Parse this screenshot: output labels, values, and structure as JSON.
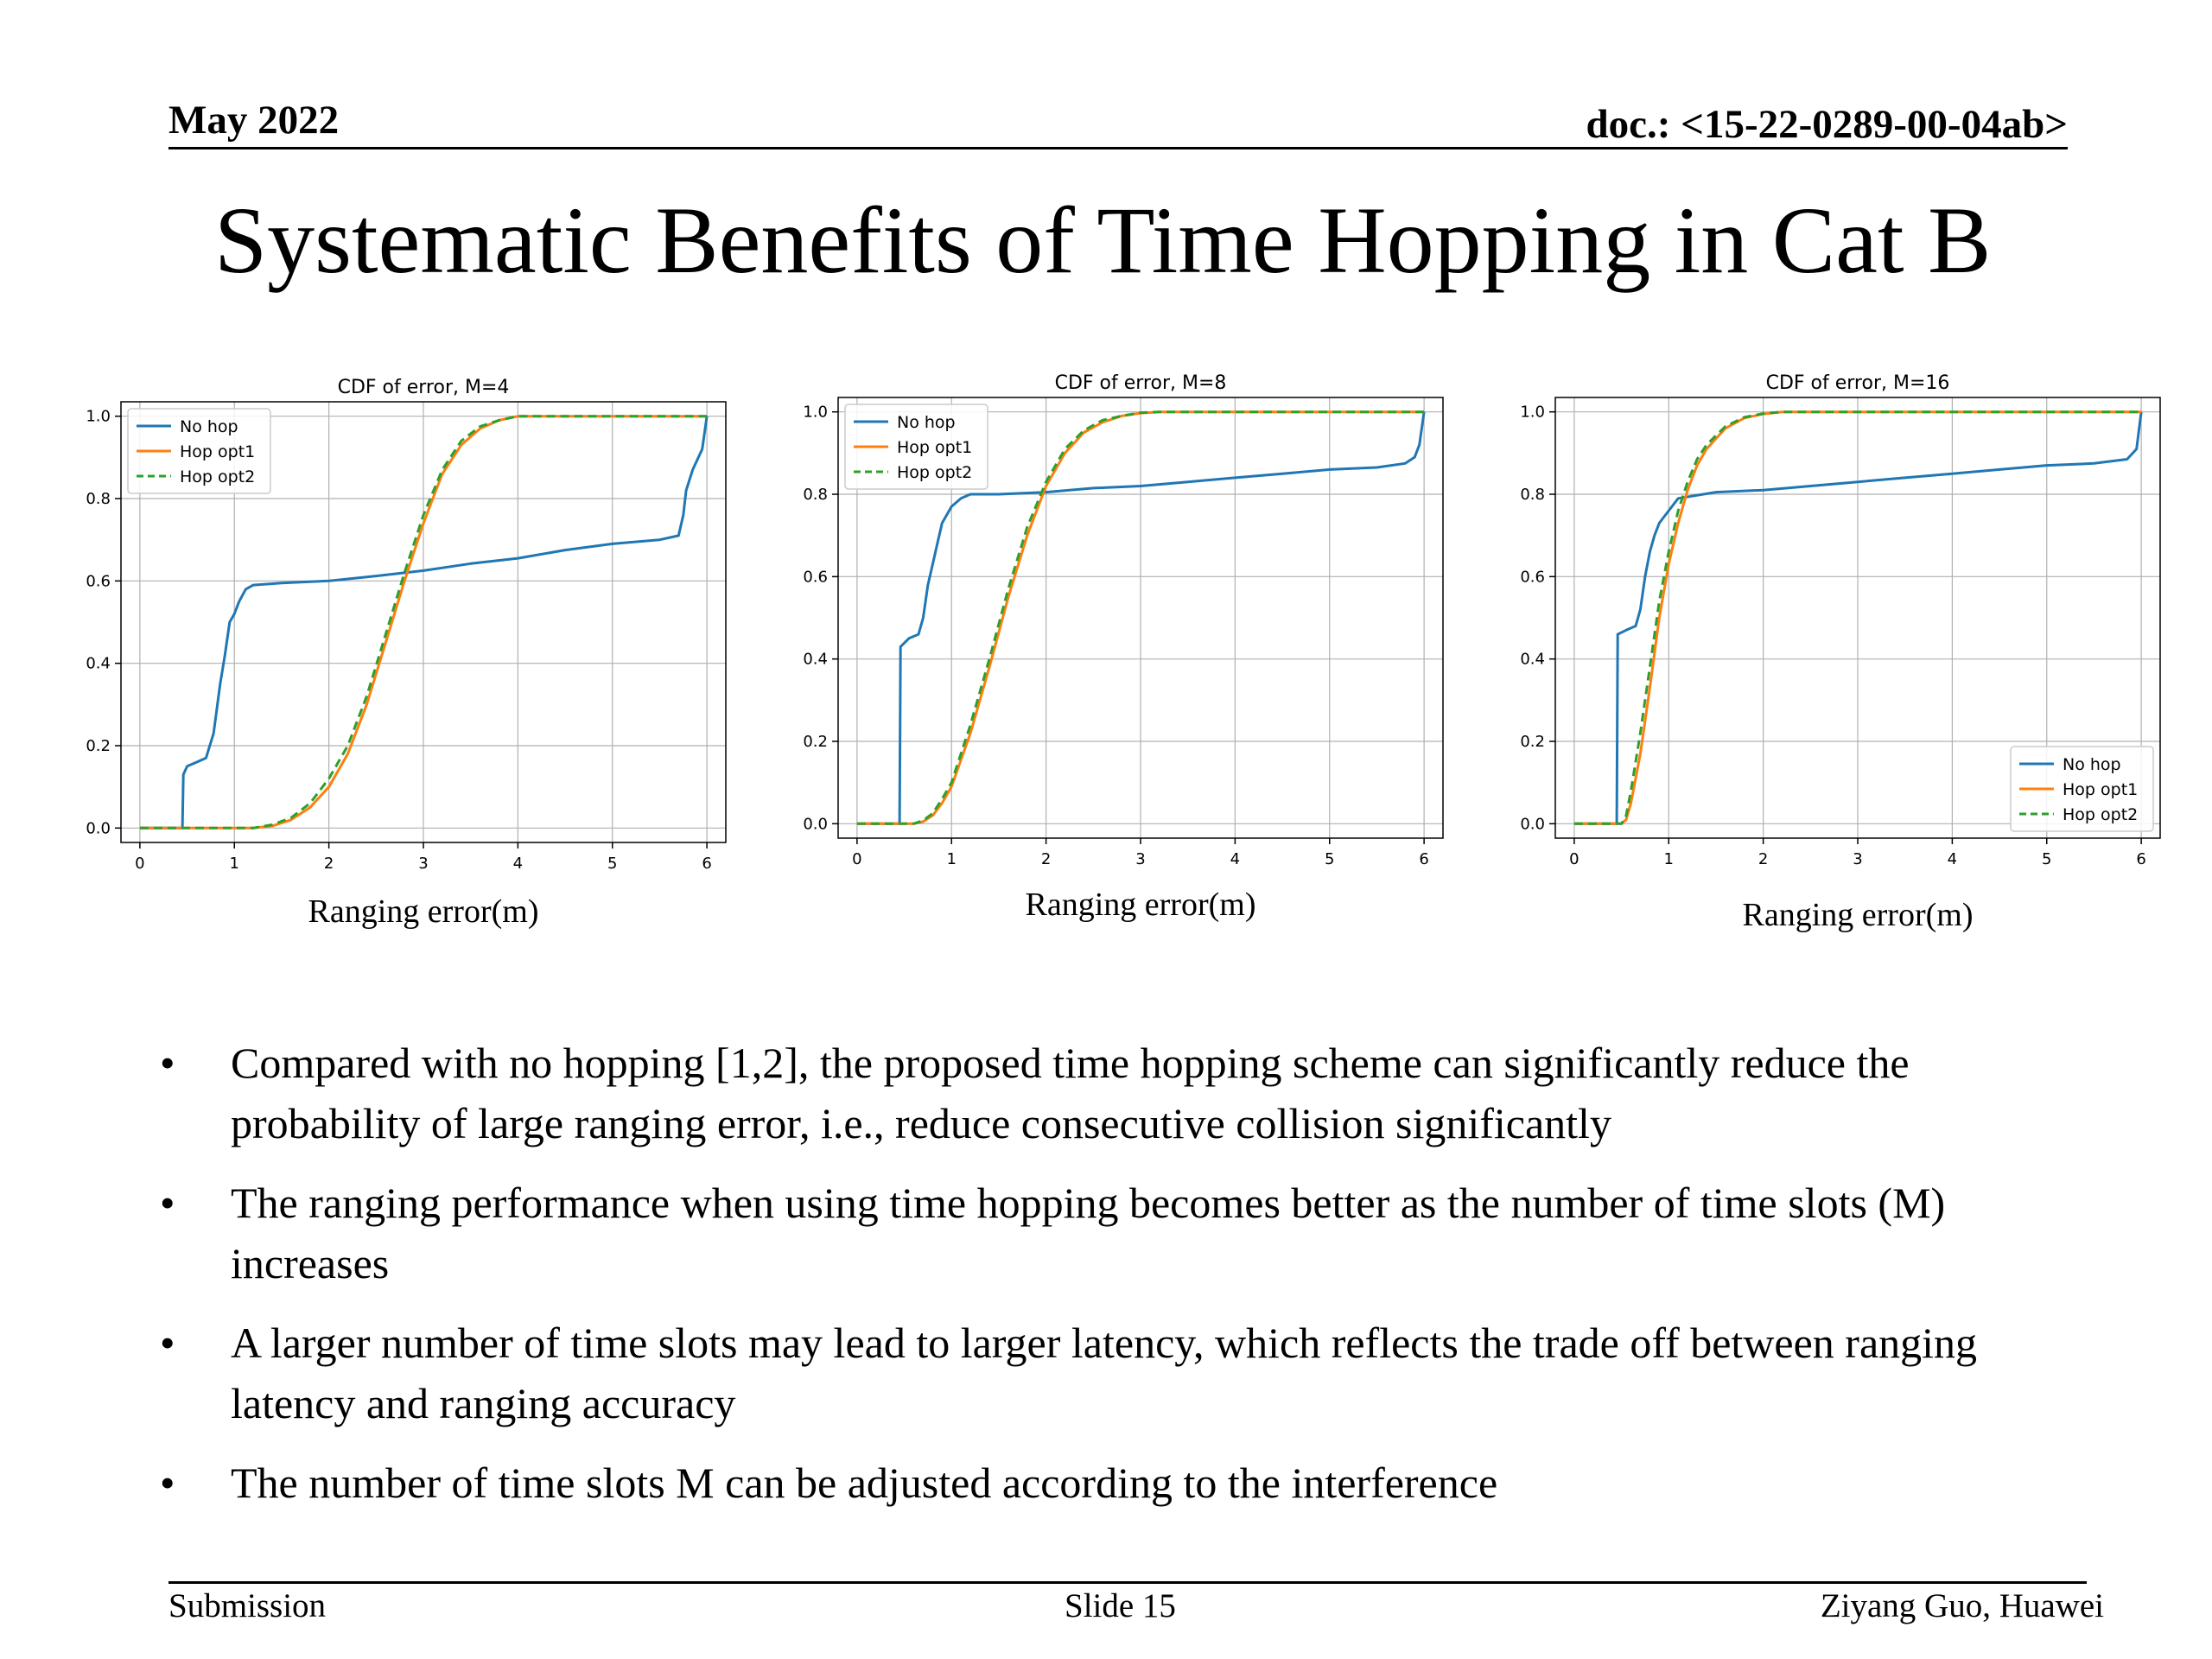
{
  "header": {
    "date": "May 2022",
    "doc": "doc.: <15-22-0289-00-04ab>"
  },
  "title": "Systematic Benefits of Time Hopping in Cat B",
  "colors": {
    "no_hop": "#1f77b4",
    "hop_opt1": "#ff7f0e",
    "hop_opt2": "#2ca02c"
  },
  "chart_data": [
    {
      "type": "line",
      "title": "CDF of error, M=4",
      "xlabel": "Ranging error(m)",
      "ylabel": "",
      "xlim": [
        0,
        6
      ],
      "ylim": [
        0,
        1
      ],
      "xticks": [
        "0",
        "1",
        "2",
        "3",
        "4",
        "5",
        "6"
      ],
      "yticks": [
        "0.0",
        "0.2",
        "0.4",
        "0.6",
        "0.8",
        "1.0"
      ],
      "grid": true,
      "legend_position": "top-left",
      "series": [
        {
          "name": "No hop",
          "style": "solid",
          "x": [
            0,
            0.45,
            0.46,
            0.5,
            0.6,
            0.7,
            0.78,
            0.85,
            0.9,
            0.95,
            1.0,
            1.05,
            1.12,
            1.2,
            1.5,
            2.0,
            2.5,
            3.0,
            3.5,
            4.0,
            4.5,
            5.0,
            5.5,
            5.7,
            5.75,
            5.78,
            5.85,
            5.95,
            6.0
          ],
          "y": [
            0.0,
            0.0,
            0.13,
            0.15,
            0.16,
            0.17,
            0.23,
            0.35,
            0.42,
            0.5,
            0.52,
            0.55,
            0.58,
            0.59,
            0.595,
            0.6,
            0.612,
            0.625,
            0.642,
            0.655,
            0.675,
            0.69,
            0.7,
            0.71,
            0.76,
            0.82,
            0.87,
            0.92,
            1.0
          ]
        },
        {
          "name": "Hop opt1",
          "style": "solid",
          "x": [
            0,
            1.0,
            1.2,
            1.4,
            1.6,
            1.8,
            2.0,
            2.2,
            2.4,
            2.6,
            2.8,
            3.0,
            3.2,
            3.4,
            3.6,
            3.8,
            4.0,
            4.3,
            6.0
          ],
          "y": [
            0.0,
            0.0,
            0.0,
            0.005,
            0.02,
            0.05,
            0.1,
            0.18,
            0.3,
            0.45,
            0.6,
            0.74,
            0.86,
            0.93,
            0.97,
            0.99,
            1.0,
            1.0,
            1.0
          ]
        },
        {
          "name": "Hop opt2",
          "style": "dashed",
          "x": [
            0,
            1.0,
            1.2,
            1.4,
            1.6,
            1.8,
            2.0,
            2.2,
            2.4,
            2.6,
            2.8,
            3.0,
            3.2,
            3.4,
            3.6,
            3.8,
            4.0,
            4.3,
            6.0
          ],
          "y": [
            0.0,
            0.0,
            0.0,
            0.008,
            0.025,
            0.06,
            0.12,
            0.2,
            0.32,
            0.47,
            0.62,
            0.76,
            0.87,
            0.94,
            0.975,
            0.99,
            1.0,
            1.0,
            1.0
          ]
        }
      ]
    },
    {
      "type": "line",
      "title": "CDF of error, M=8",
      "xlabel": "Ranging error(m)",
      "ylabel": "",
      "xlim": [
        0,
        6
      ],
      "ylim": [
        0,
        1
      ],
      "xticks": [
        "0",
        "1",
        "2",
        "3",
        "4",
        "5",
        "6"
      ],
      "yticks": [
        "0.0",
        "0.2",
        "0.4",
        "0.6",
        "0.8",
        "1.0"
      ],
      "grid": true,
      "legend_position": "top-left",
      "series": [
        {
          "name": "No hop",
          "style": "solid",
          "x": [
            0,
            0.45,
            0.46,
            0.55,
            0.65,
            0.7,
            0.75,
            0.8,
            0.85,
            0.9,
            0.95,
            1.0,
            1.1,
            1.2,
            1.5,
            2.0,
            2.5,
            3.0,
            3.5,
            4.0,
            4.5,
            5.0,
            5.5,
            5.8,
            5.9,
            5.95,
            6.0
          ],
          "y": [
            0.0,
            0.0,
            0.43,
            0.45,
            0.46,
            0.5,
            0.58,
            0.63,
            0.68,
            0.73,
            0.75,
            0.77,
            0.79,
            0.8,
            0.8,
            0.805,
            0.815,
            0.82,
            0.83,
            0.84,
            0.85,
            0.86,
            0.865,
            0.875,
            0.89,
            0.92,
            1.0
          ]
        },
        {
          "name": "Hop opt1",
          "style": "solid",
          "x": [
            0,
            0.6,
            0.7,
            0.8,
            0.9,
            1.0,
            1.2,
            1.4,
            1.6,
            1.8,
            2.0,
            2.2,
            2.4,
            2.6,
            2.8,
            3.0,
            3.2,
            3.5,
            6.0
          ],
          "y": [
            0.0,
            0.0,
            0.005,
            0.02,
            0.05,
            0.09,
            0.22,
            0.38,
            0.55,
            0.7,
            0.82,
            0.9,
            0.95,
            0.975,
            0.99,
            0.997,
            1.0,
            1.0,
            1.0
          ]
        },
        {
          "name": "Hop opt2",
          "style": "dashed",
          "x": [
            0,
            0.6,
            0.7,
            0.8,
            0.9,
            1.0,
            1.2,
            1.4,
            1.6,
            1.8,
            2.0,
            2.2,
            2.4,
            2.6,
            2.8,
            3.0,
            3.2,
            3.5,
            6.0
          ],
          "y": [
            0.0,
            0.0,
            0.008,
            0.025,
            0.06,
            0.1,
            0.24,
            0.4,
            0.57,
            0.72,
            0.83,
            0.91,
            0.955,
            0.98,
            0.99,
            0.998,
            1.0,
            1.0,
            1.0
          ]
        }
      ]
    },
    {
      "type": "line",
      "title": "CDF of error, M=16",
      "xlabel": "Ranging error(m)",
      "ylabel": "",
      "xlim": [
        0,
        6
      ],
      "ylim": [
        0,
        1
      ],
      "xticks": [
        "0",
        "1",
        "2",
        "3",
        "4",
        "5",
        "6"
      ],
      "yticks": [
        "0.0",
        "0.2",
        "0.4",
        "0.6",
        "0.8",
        "1.0"
      ],
      "grid": true,
      "legend_position": "bottom-right",
      "series": [
        {
          "name": "No hop",
          "style": "solid",
          "x": [
            0,
            0.45,
            0.46,
            0.55,
            0.65,
            0.7,
            0.75,
            0.8,
            0.85,
            0.9,
            1.0,
            1.1,
            1.5,
            2.0,
            2.5,
            3.0,
            3.5,
            4.0,
            4.5,
            5.0,
            5.5,
            5.85,
            5.95,
            6.0
          ],
          "y": [
            0.0,
            0.0,
            0.46,
            0.47,
            0.48,
            0.52,
            0.6,
            0.66,
            0.7,
            0.73,
            0.76,
            0.79,
            0.805,
            0.81,
            0.82,
            0.83,
            0.84,
            0.85,
            0.86,
            0.87,
            0.875,
            0.885,
            0.91,
            1.0
          ]
        },
        {
          "name": "Hop opt1",
          "style": "solid",
          "x": [
            0,
            0.5,
            0.55,
            0.6,
            0.7,
            0.8,
            0.9,
            1.0,
            1.1,
            1.2,
            1.3,
            1.4,
            1.6,
            1.8,
            2.0,
            2.2,
            2.5,
            6.0
          ],
          "y": [
            0.0,
            0.0,
            0.01,
            0.05,
            0.17,
            0.33,
            0.5,
            0.63,
            0.73,
            0.81,
            0.87,
            0.91,
            0.96,
            0.985,
            0.995,
            1.0,
            1.0,
            1.0
          ]
        },
        {
          "name": "Hop opt2",
          "style": "dashed",
          "x": [
            0,
            0.5,
            0.55,
            0.6,
            0.7,
            0.8,
            0.9,
            1.0,
            1.1,
            1.2,
            1.3,
            1.4,
            1.6,
            1.8,
            2.0,
            2.2,
            2.5,
            6.0
          ],
          "y": [
            0.0,
            0.0,
            0.02,
            0.08,
            0.22,
            0.38,
            0.54,
            0.66,
            0.76,
            0.83,
            0.885,
            0.92,
            0.965,
            0.987,
            0.996,
            1.0,
            1.0,
            1.0
          ]
        }
      ]
    }
  ],
  "bullets": [
    "Compared with no hopping [1,2], the proposed time hopping scheme can significantly reduce the probability of large ranging error, i.e., reduce consecutive collision significantly",
    "The ranging performance when using time hopping becomes better as the number of time slots (M) increases",
    "A larger number of time slots may lead to larger latency, which reflects the trade off between ranging latency and ranging accuracy",
    "The number of time slots M can be adjusted according to the interference"
  ],
  "footer": {
    "left": "Submission",
    "center": "Slide 15",
    "right": "Ziyang Guo, Huawei"
  }
}
